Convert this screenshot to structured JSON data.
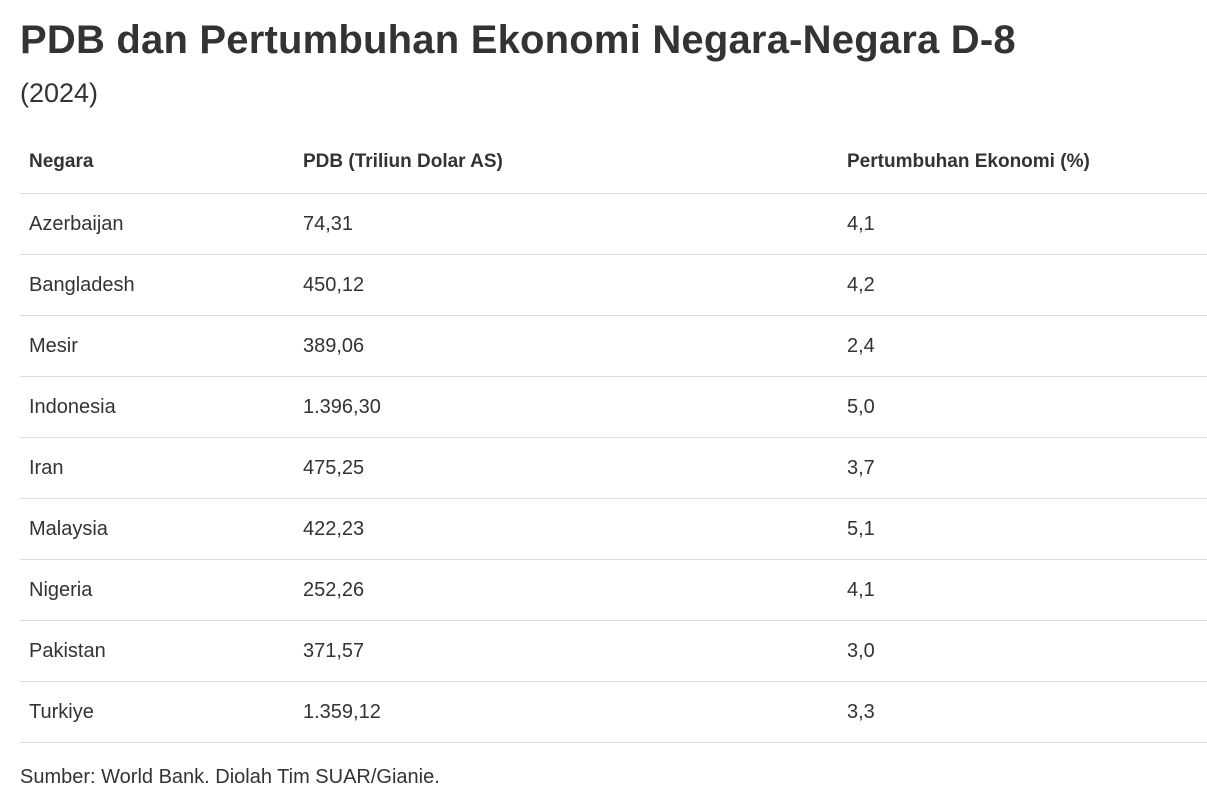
{
  "header": {
    "title": "PDB dan Pertumbuhan Ekonomi Negara-Negara D-8",
    "subtitle": "(2024)"
  },
  "table": {
    "columns": [
      "Negara",
      "PDB (Triliun Dolar AS)",
      "Pertumbuhan Ekonomi (%)"
    ],
    "rows": [
      [
        "Azerbaijan",
        "74,31",
        "4,1"
      ],
      [
        "Bangladesh",
        "450,12",
        "4,2"
      ],
      [
        "Mesir",
        "389,06",
        "2,4"
      ],
      [
        "Indonesia",
        "1.396,30",
        "5,0"
      ],
      [
        "Iran",
        "475,25",
        "3,7"
      ],
      [
        "Malaysia",
        "422,23",
        "5,1"
      ],
      [
        "Nigeria",
        "252,26",
        "4,1"
      ],
      [
        "Pakistan",
        "371,57",
        "3,0"
      ],
      [
        "Turkiye",
        "1.359,12",
        "3,3"
      ]
    ]
  },
  "footer": {
    "source": "Sumber: World Bank. Diolah Tim SUAR/Gianie."
  },
  "colors": {
    "text": "#333333",
    "divider": "#dddddd",
    "background": "#ffffff"
  },
  "chart_data": {
    "type": "table",
    "title": "PDB dan Pertumbuhan Ekonomi Negara-Negara D-8",
    "subtitle": "(2024)",
    "columns": [
      "Negara",
      "PDB (Triliun Dolar AS)",
      "Pertumbuhan Ekonomi (%)"
    ],
    "categories": [
      "Azerbaijan",
      "Bangladesh",
      "Mesir",
      "Indonesia",
      "Iran",
      "Malaysia",
      "Nigeria",
      "Pakistan",
      "Turkiye"
    ],
    "series": [
      {
        "name": "PDB (Triliun Dolar AS)",
        "values": [
          74.31,
          450.12,
          389.06,
          1396.3,
          475.25,
          422.23,
          252.26,
          371.57,
          1359.12
        ]
      },
      {
        "name": "Pertumbuhan Ekonomi (%)",
        "values": [
          4.1,
          4.2,
          2.4,
          5.0,
          3.7,
          5.1,
          4.1,
          3.0,
          3.3
        ]
      }
    ],
    "source": "Sumber: World Bank. Diolah Tim SUAR/Gianie."
  }
}
